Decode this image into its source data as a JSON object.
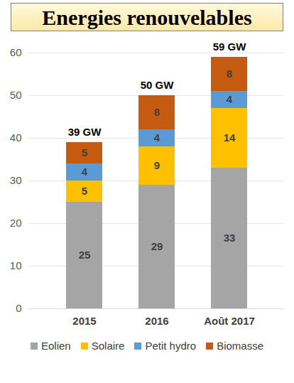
{
  "chart_data": {
    "type": "bar",
    "title": "Energies renouvelables",
    "categories": [
      "2015",
      "2016",
      "Août 2017"
    ],
    "series": [
      {
        "name": "Eolien",
        "color": "#a5a5a5",
        "values": [
          25,
          29,
          33
        ]
      },
      {
        "name": "Solaire",
        "color": "#ffc000",
        "values": [
          5,
          9,
          14
        ]
      },
      {
        "name": "Petit hydro",
        "color": "#5b9bd5",
        "values": [
          4,
          4,
          4
        ]
      },
      {
        "name": "Biomasse",
        "color": "#c55a11",
        "values": [
          5,
          8,
          8
        ]
      }
    ],
    "totals": {
      "values": [
        39,
        50,
        59
      ],
      "value_labels": [
        "39 GW",
        "50 GW",
        "59 GW"
      ]
    },
    "ylim": [
      0,
      60
    ],
    "yticks": [
      0,
      10,
      20,
      30,
      40,
      50,
      60
    ],
    "grid": true,
    "stacked": true,
    "data_labels": true,
    "legend": "bottom"
  }
}
